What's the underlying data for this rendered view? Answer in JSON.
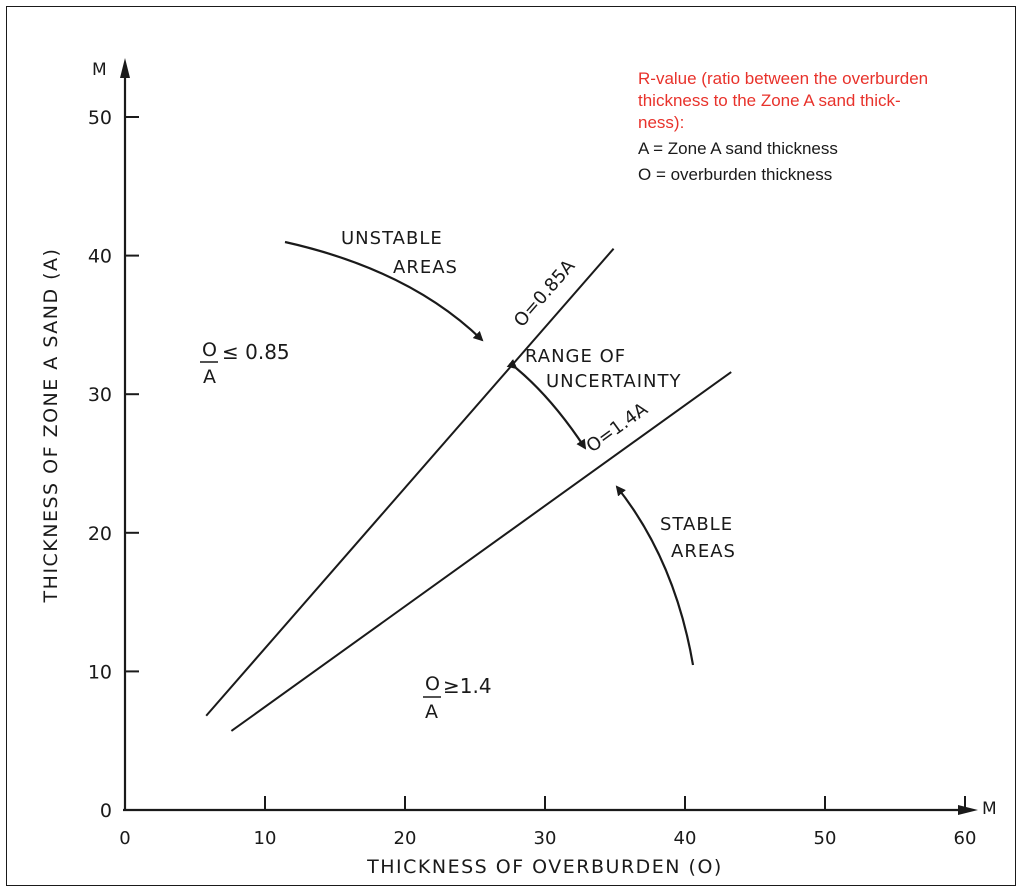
{
  "chart_data": {
    "type": "line",
    "xlabel": "THICKNESS OF OVERBURDEN (O)",
    "ylabel": "THICKNESS OF ZONE A SAND (A)",
    "x_unit": "M",
    "y_unit": "M",
    "xlim": [
      0,
      60
    ],
    "ylim": [
      0,
      50
    ],
    "x_ticks": [
      "0",
      "10",
      "20",
      "30",
      "40",
      "50",
      "60"
    ],
    "y_ticks": [
      "0",
      "10",
      "20",
      "30",
      "40",
      "50"
    ],
    "grid": false,
    "series": [
      {
        "name": "O=0.85A",
        "x": [
          5.8,
          34.9
        ],
        "y": [
          6.8,
          40.5
        ]
      },
      {
        "name": "O=1.4A",
        "x": [
          7.6,
          43.3
        ],
        "y": [
          5.7,
          31.6
        ]
      }
    ],
    "annotations": {
      "unstable_label_1": "UNSTABLE",
      "unstable_label_2": "AREAS",
      "range_label_1": "RANGE OF",
      "range_label_2": "UNCERTAINTY",
      "stable_label_1": "STABLE",
      "stable_label_2": "AREAS",
      "left_ratio_num": "O",
      "left_ratio_den": "A",
      "left_ratio_rel": "≤ 0.85",
      "right_ratio_num": "O",
      "right_ratio_den": "A",
      "right_ratio_rel": "≥1.4"
    },
    "note": {
      "title_lines": [
        "R-value (ratio between the overburden",
        "thickness to the Zone A sand thick-",
        "ness):"
      ],
      "lines": [
        "A = Zone A sand thickness",
        "O = overburden thickness"
      ],
      "title_color": "#e8322b"
    }
  }
}
